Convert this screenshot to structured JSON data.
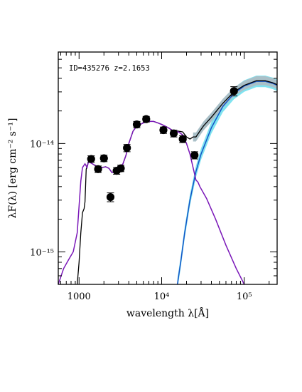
{
  "chart_data": {
    "type": "line",
    "title": "",
    "annotation": "ID=435276 z=2.1653",
    "xlabel": "wavelength λ[Å]",
    "ylabel": "λF(λ) [erg cm⁻² s⁻¹]",
    "xscale": "log",
    "yscale": "log",
    "xlim": [
      560,
      250000
    ],
    "ylim": [
      5e-16,
      7e-14
    ],
    "x_ticks": [
      {
        "value": 1000,
        "label": "1000"
      },
      {
        "value": 10000,
        "label": "10⁴"
      },
      {
        "value": 100000,
        "label": "10⁵"
      }
    ],
    "y_ticks": [
      {
        "value": 1e-15,
        "label": "10⁻¹⁵"
      },
      {
        "value": 1e-14,
        "label": "10⁻¹⁴"
      }
    ],
    "grid": false,
    "colors": {
      "total_model": "#000000",
      "stellar_component": "#7a17b8",
      "dust_component": "#1455c8",
      "dust_band": "#7fe3f0",
      "total_band": "#aac0c8",
      "data_points": "#000000"
    },
    "series": [
      {
        "role": "observed photometry",
        "kind": "scatter",
        "points": [
          {
            "x": 1400,
            "y": 7.2e-15,
            "yerr": 5e-16
          },
          {
            "x": 1700,
            "y": 5.8e-15,
            "yerr": 4e-16
          },
          {
            "x": 2000,
            "y": 7.3e-15,
            "yerr": 5e-16
          },
          {
            "x": 2400,
            "y": 3.2e-15,
            "yerr": 3e-16
          },
          {
            "x": 2850,
            "y": 5.6e-15,
            "yerr": 4e-16
          },
          {
            "x": 3200,
            "y": 5.9e-15,
            "yerr": 4e-16
          },
          {
            "x": 3800,
            "y": 9.1e-15,
            "yerr": 7e-16
          },
          {
            "x": 5000,
            "y": 1.5e-14,
            "yerr": 1e-15
          },
          {
            "x": 6500,
            "y": 1.68e-14,
            "yerr": 1e-15
          },
          {
            "x": 10500,
            "y": 1.33e-14,
            "yerr": 9e-16
          },
          {
            "x": 14000,
            "y": 1.24e-14,
            "yerr": 9e-16
          },
          {
            "x": 18000,
            "y": 1.1e-14,
            "yerr": 8e-16
          },
          {
            "x": 25000,
            "y": 7.8e-15,
            "yerr": 6e-16
          },
          {
            "x": 75000,
            "y": 3.05e-14,
            "yerr": 3e-15
          }
        ]
      },
      {
        "role": "stellar component",
        "kind": "line",
        "points": [
          {
            "x": 560,
            "y": 5e-16
          },
          {
            "x": 650,
            "y": 7e-16
          },
          {
            "x": 750,
            "y": 8.5e-16
          },
          {
            "x": 850,
            "y": 1e-15
          },
          {
            "x": 950,
            "y": 1.5e-15
          },
          {
            "x": 1050,
            "y": 4.5e-15
          },
          {
            "x": 1100,
            "y": 6e-15
          },
          {
            "x": 1180,
            "y": 6.5e-15
          },
          {
            "x": 1250,
            "y": 6e-15
          },
          {
            "x": 1300,
            "y": 6.8e-15
          },
          {
            "x": 1400,
            "y": 6.6e-15
          },
          {
            "x": 1550,
            "y": 6.3e-15
          },
          {
            "x": 1700,
            "y": 6.1e-15
          },
          {
            "x": 1900,
            "y": 6e-15
          },
          {
            "x": 2100,
            "y": 6.1e-15
          },
          {
            "x": 2300,
            "y": 5.9e-15
          },
          {
            "x": 2500,
            "y": 5.4e-15
          },
          {
            "x": 2800,
            "y": 5.6e-15
          },
          {
            "x": 3100,
            "y": 6e-15
          },
          {
            "x": 3400,
            "y": 6.5e-15
          },
          {
            "x": 3700,
            "y": 7.8e-15
          },
          {
            "x": 4000,
            "y": 1e-14
          },
          {
            "x": 4500,
            "y": 1.3e-14
          },
          {
            "x": 5000,
            "y": 1.45e-14
          },
          {
            "x": 6000,
            "y": 1.55e-14
          },
          {
            "x": 7000,
            "y": 1.6e-14
          },
          {
            "x": 8000,
            "y": 1.6e-14
          },
          {
            "x": 9000,
            "y": 1.55e-14
          },
          {
            "x": 10000,
            "y": 1.5e-14
          },
          {
            "x": 12000,
            "y": 1.4e-14
          },
          {
            "x": 14000,
            "y": 1.3e-14
          },
          {
            "x": 16000,
            "y": 1.28e-14
          },
          {
            "x": 18000,
            "y": 1.2e-14
          },
          {
            "x": 20000,
            "y": 1e-14
          },
          {
            "x": 22000,
            "y": 8e-15
          },
          {
            "x": 24000,
            "y": 6e-15
          },
          {
            "x": 26000,
            "y": 4.6e-15
          },
          {
            "x": 27500,
            "y": 4.4e-15
          },
          {
            "x": 29000,
            "y": 4e-15
          },
          {
            "x": 35000,
            "y": 3.1e-15
          },
          {
            "x": 45000,
            "y": 2e-15
          },
          {
            "x": 60000,
            "y": 1.15e-15
          },
          {
            "x": 80000,
            "y": 7e-16
          },
          {
            "x": 100000,
            "y": 5e-16
          }
        ]
      },
      {
        "role": "dust component",
        "kind": "line",
        "points": [
          {
            "x": 15500,
            "y": 5e-16
          },
          {
            "x": 17000,
            "y": 8e-16
          },
          {
            "x": 19000,
            "y": 1.5e-15
          },
          {
            "x": 22000,
            "y": 3e-15
          },
          {
            "x": 26000,
            "y": 5.5e-15
          },
          {
            "x": 30000,
            "y": 8e-15
          },
          {
            "x": 40000,
            "y": 1.4e-14
          },
          {
            "x": 55000,
            "y": 2.2e-14
          },
          {
            "x": 75000,
            "y": 2.9e-14
          },
          {
            "x": 100000,
            "y": 3.4e-14
          },
          {
            "x": 140000,
            "y": 3.75e-14
          },
          {
            "x": 180000,
            "y": 3.75e-14
          },
          {
            "x": 220000,
            "y": 3.6e-14
          },
          {
            "x": 250000,
            "y": 3.45e-14
          }
        ]
      },
      {
        "role": "total model",
        "kind": "line",
        "points": [
          {
            "x": 950,
            "y": 5e-16
          },
          {
            "x": 1000,
            "y": 8e-16
          },
          {
            "x": 1050,
            "y": 1.5e-15
          },
          {
            "x": 1100,
            "y": 2.3e-15
          },
          {
            "x": 1150,
            "y": 2.5e-15
          },
          {
            "x": 1180,
            "y": 2.9e-15
          },
          {
            "x": 1220,
            "y": 5.8e-15
          },
          {
            "x": 1300,
            "y": 6.8e-15
          },
          {
            "x": 1400,
            "y": 6.6e-15
          },
          {
            "x": 1550,
            "y": 6.3e-15
          },
          {
            "x": 1700,
            "y": 6.1e-15
          },
          {
            "x": 1900,
            "y": 6e-15
          },
          {
            "x": 2100,
            "y": 6.1e-15
          },
          {
            "x": 2300,
            "y": 5.9e-15
          },
          {
            "x": 2500,
            "y": 5.4e-15
          },
          {
            "x": 2800,
            "y": 5.6e-15
          },
          {
            "x": 3100,
            "y": 6e-15
          },
          {
            "x": 3400,
            "y": 6.5e-15
          },
          {
            "x": 3700,
            "y": 7.8e-15
          },
          {
            "x": 4000,
            "y": 1e-14
          },
          {
            "x": 4500,
            "y": 1.3e-14
          },
          {
            "x": 5000,
            "y": 1.45e-14
          },
          {
            "x": 6000,
            "y": 1.55e-14
          },
          {
            "x": 7000,
            "y": 1.6e-14
          },
          {
            "x": 8000,
            "y": 1.6e-14
          },
          {
            "x": 9000,
            "y": 1.55e-14
          },
          {
            "x": 10000,
            "y": 1.5e-14
          },
          {
            "x": 12000,
            "y": 1.4e-14
          },
          {
            "x": 14000,
            "y": 1.3e-14
          },
          {
            "x": 16000,
            "y": 1.3e-14
          },
          {
            "x": 18000,
            "y": 1.28e-14
          },
          {
            "x": 20000,
            "y": 1.15e-14
          },
          {
            "x": 22000,
            "y": 1.1e-14
          },
          {
            "x": 24000,
            "y": 1.15e-14
          },
          {
            "x": 26000,
            "y": 1.15e-14
          },
          {
            "x": 28000,
            "y": 1.25e-14
          },
          {
            "x": 32000,
            "y": 1.45e-14
          },
          {
            "x": 40000,
            "y": 1.75e-14
          },
          {
            "x": 55000,
            "y": 2.35e-14
          },
          {
            "x": 75000,
            "y": 3e-14
          },
          {
            "x": 100000,
            "y": 3.45e-14
          },
          {
            "x": 140000,
            "y": 3.8e-14
          },
          {
            "x": 180000,
            "y": 3.8e-14
          },
          {
            "x": 220000,
            "y": 3.65e-14
          },
          {
            "x": 250000,
            "y": 3.5e-14
          }
        ]
      }
    ]
  }
}
